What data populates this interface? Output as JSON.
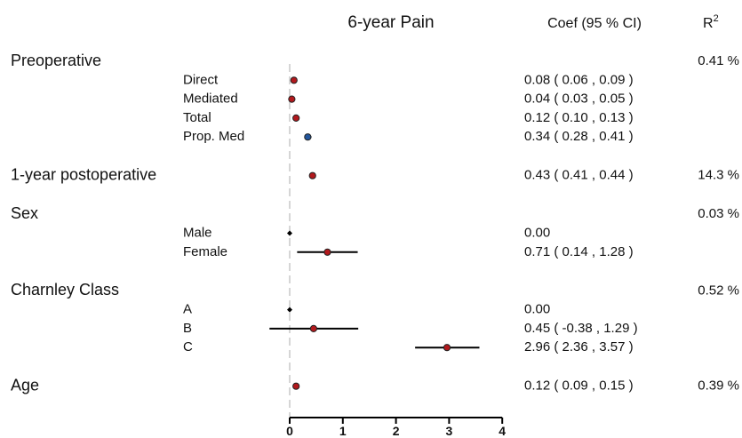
{
  "title": "6-year Pain",
  "coef_header": "Coef (95 % CI)",
  "r2_header": "R",
  "r2_header_sup": "2",
  "chart_data": {
    "type": "forest",
    "x_ticks": [
      "0",
      "1",
      "2",
      "3",
      "4"
    ],
    "xlim": [
      0,
      4
    ],
    "colors": {
      "effect": "#b2191d",
      "proportion": "#23569c",
      "reference": "#000000",
      "ci": "#000000",
      "zero_line": "#d6d6d6"
    },
    "groups": [
      {
        "label": "Preoperative",
        "r2": "0.41 %",
        "rows": [
          {
            "label": "Direct",
            "est": 0.08,
            "lo": 0.06,
            "hi": 0.09,
            "text": "0.08 ( 0.06 ,  0.09 )",
            "kind": "effect"
          },
          {
            "label": "Mediated",
            "est": 0.04,
            "lo": 0.03,
            "hi": 0.05,
            "text": "0.04 ( 0.03 ,  0.05 )",
            "kind": "effect"
          },
          {
            "label": "Total",
            "est": 0.12,
            "lo": 0.1,
            "hi": 0.13,
            "text": "0.12 ( 0.10 ,  0.13 )",
            "kind": "effect"
          },
          {
            "label": "Prop. Med",
            "est": 0.34,
            "lo": 0.28,
            "hi": 0.41,
            "text": "0.34 ( 0.28 ,  0.41 )",
            "kind": "proportion"
          }
        ]
      },
      {
        "label": "1-year postoperative",
        "r2": "14.3 %",
        "est": 0.43,
        "lo": 0.41,
        "hi": 0.44,
        "text": "0.43 ( 0.41 ,  0.44 )",
        "kind": "effect",
        "rows": []
      },
      {
        "label": "Sex",
        "r2": "0.03 %",
        "rows": [
          {
            "label": "Male",
            "est": 0.0,
            "text": "0.00",
            "kind": "reference"
          },
          {
            "label": "Female",
            "est": 0.71,
            "lo": 0.14,
            "hi": 1.28,
            "text": "0.71 ( 0.14 ,  1.28 )",
            "kind": "effect"
          }
        ]
      },
      {
        "label": "Charnley Class",
        "r2": "0.52 %",
        "rows": [
          {
            "label": "A",
            "est": 0.0,
            "text": "0.00",
            "kind": "reference"
          },
          {
            "label": "B",
            "est": 0.45,
            "lo": -0.38,
            "hi": 1.29,
            "text": "0.45 ( -0.38 ,  1.29 )",
            "kind": "effect"
          },
          {
            "label": "C",
            "est": 2.96,
            "lo": 2.36,
            "hi": 3.57,
            "text": "2.96 ( 2.36 ,  3.57 )",
            "kind": "effect"
          }
        ]
      },
      {
        "label": "Age",
        "r2": "0.39 %",
        "est": 0.12,
        "lo": 0.09,
        "hi": 0.15,
        "text": "0.12 ( 0.09 ,  0.15 )",
        "kind": "effect",
        "rows": []
      }
    ]
  }
}
